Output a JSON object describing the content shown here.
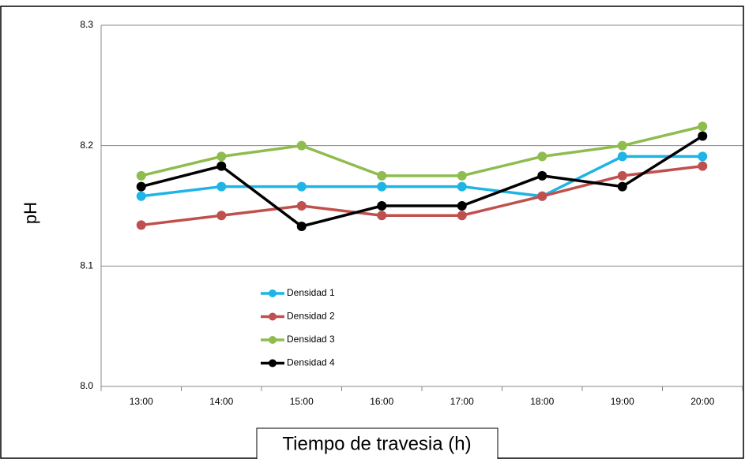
{
  "chart_data": {
    "type": "line",
    "x_label": "Tiempo de travesia  (h)",
    "y_label": "pH",
    "categories": [
      "13:00",
      "14:00",
      "15:00",
      "16:00",
      "17:00",
      "18:00",
      "19:00",
      "20:00"
    ],
    "series": [
      {
        "name": "Densidad 1",
        "color": "#1fb4e6",
        "values": [
          8.158,
          8.166,
          8.166,
          8.166,
          8.166,
          8.158,
          8.191,
          8.191
        ]
      },
      {
        "name": "Densidad 2",
        "color": "#c0504d",
        "values": [
          8.134,
          8.142,
          8.15,
          8.142,
          8.142,
          8.158,
          8.175,
          8.183
        ]
      },
      {
        "name": "Densidad 3",
        "color": "#8fbc4f",
        "values": [
          8.175,
          8.191,
          8.2,
          8.175,
          8.175,
          8.191,
          8.2,
          8.216
        ]
      },
      {
        "name": "Densidad 4",
        "color": "#000000",
        "values": [
          8.166,
          8.183,
          8.133,
          8.15,
          8.15,
          8.175,
          8.166,
          8.208
        ]
      }
    ],
    "ylim": [
      8.0,
      8.3
    ],
    "yticks": [
      {
        "value": 8.0,
        "label": "8.0"
      },
      8.1,
      8.2,
      8.3
    ],
    "grid": true,
    "legend": "lower-left"
  }
}
